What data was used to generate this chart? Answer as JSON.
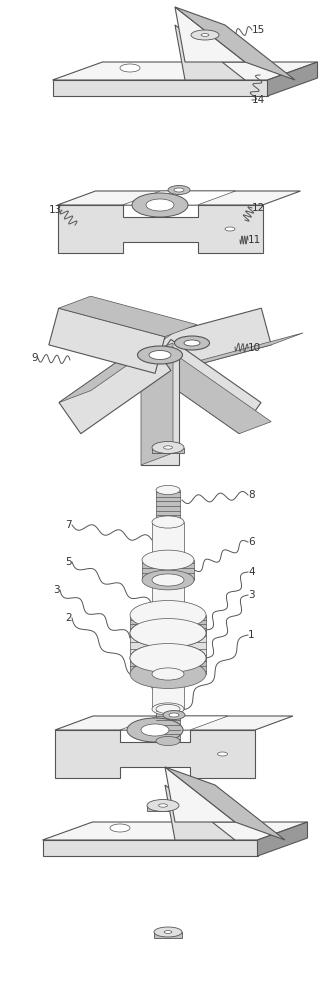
{
  "bg_color": "#ffffff",
  "line_color": "#555555",
  "label_color": "#333333",
  "label_fontsize": 7.5,
  "figsize": [
    3.35,
    10.0
  ],
  "dpi": 100,
  "xlim": [
    0,
    335
  ],
  "ylim": [
    0,
    1000
  ]
}
